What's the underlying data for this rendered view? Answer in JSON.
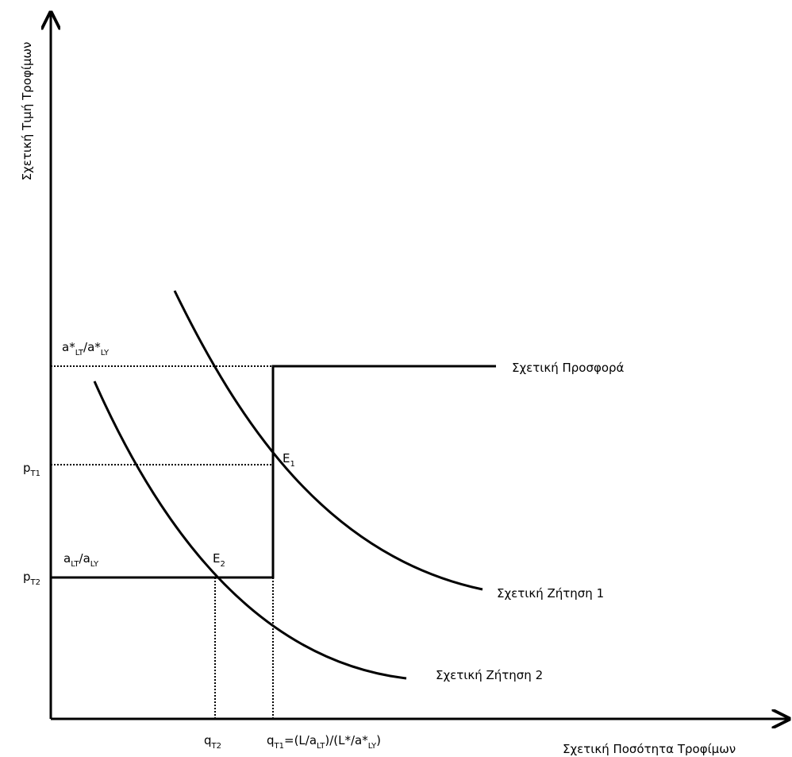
{
  "diagram": {
    "y_axis_title": "Σχετική Τιμή Τροφίμων",
    "x_axis_title": "Σχετική Ποσότητα Τροφίμων",
    "supply_label": "Σχετική Προσφορά",
    "demand1_label": "Σχετική Ζήτηση 1",
    "demand2_label": "Σχετική Ζήτηση 2",
    "price_upper": {
      "a1": "a*",
      "s1": "LT",
      "sep": "/",
      "a2": "a*",
      "s2": "LY"
    },
    "price_lower": {
      "a1": "a",
      "s1": "LT",
      "sep": "/",
      "a2": "a",
      "s2": "LY"
    },
    "pT1": {
      "base": "p",
      "sub": "T1"
    },
    "pT2": {
      "base": "p",
      "sub": "T2"
    },
    "qT2": {
      "base": "q",
      "sub": "T2"
    },
    "qT1": {
      "base": "q",
      "sub": "T1",
      "part1": "=(L/a",
      "sub2": "LT",
      "part2": ")/(L*/a*",
      "sub3": "LY",
      "part3": ")"
    },
    "E1": {
      "base": "E",
      "sub": "1"
    },
    "E2": {
      "base": "E",
      "sub": "2"
    }
  }
}
